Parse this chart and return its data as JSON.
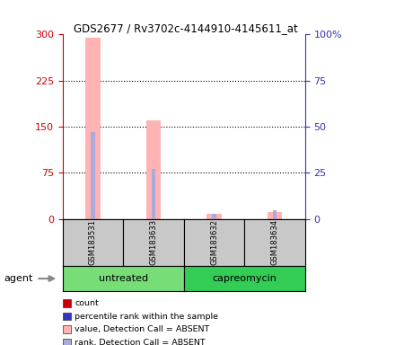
{
  "title": "GDS2677 / Rv3702c-4144910-4145611_at",
  "samples": [
    "GSM183531",
    "GSM183633",
    "GSM183632",
    "GSM183634"
  ],
  "groups": [
    {
      "name": "untreated",
      "count": 2,
      "color": "#77DD77"
    },
    {
      "name": "capreomycin",
      "count": 2,
      "color": "#33CC55"
    }
  ],
  "values": [
    295,
    160,
    8,
    12
  ],
  "ranks": [
    47,
    27,
    3,
    5
  ],
  "detection_call": [
    "ABSENT",
    "ABSENT",
    "ABSENT",
    "ABSENT"
  ],
  "ylim_left": [
    0,
    300
  ],
  "ylim_right": [
    0,
    100
  ],
  "yticks_left": [
    0,
    75,
    150,
    225,
    300
  ],
  "yticks_right": [
    0,
    25,
    50,
    75,
    100
  ],
  "left_color": "#CC0000",
  "right_color": "#3333BB",
  "bar_color_absent": "#FFB3B3",
  "rank_bar_color_absent": "#AAAADD",
  "value_bar_width": 0.25,
  "rank_bar_width": 0.07,
  "legend_items": [
    {
      "label": "count",
      "color": "#CC0000"
    },
    {
      "label": "percentile rank within the sample",
      "color": "#3333BB"
    },
    {
      "label": "value, Detection Call = ABSENT",
      "color": "#FFB3B3"
    },
    {
      "label": "rank, Detection Call = ABSENT",
      "color": "#AAAADD"
    }
  ],
  "agent_label": "agent"
}
